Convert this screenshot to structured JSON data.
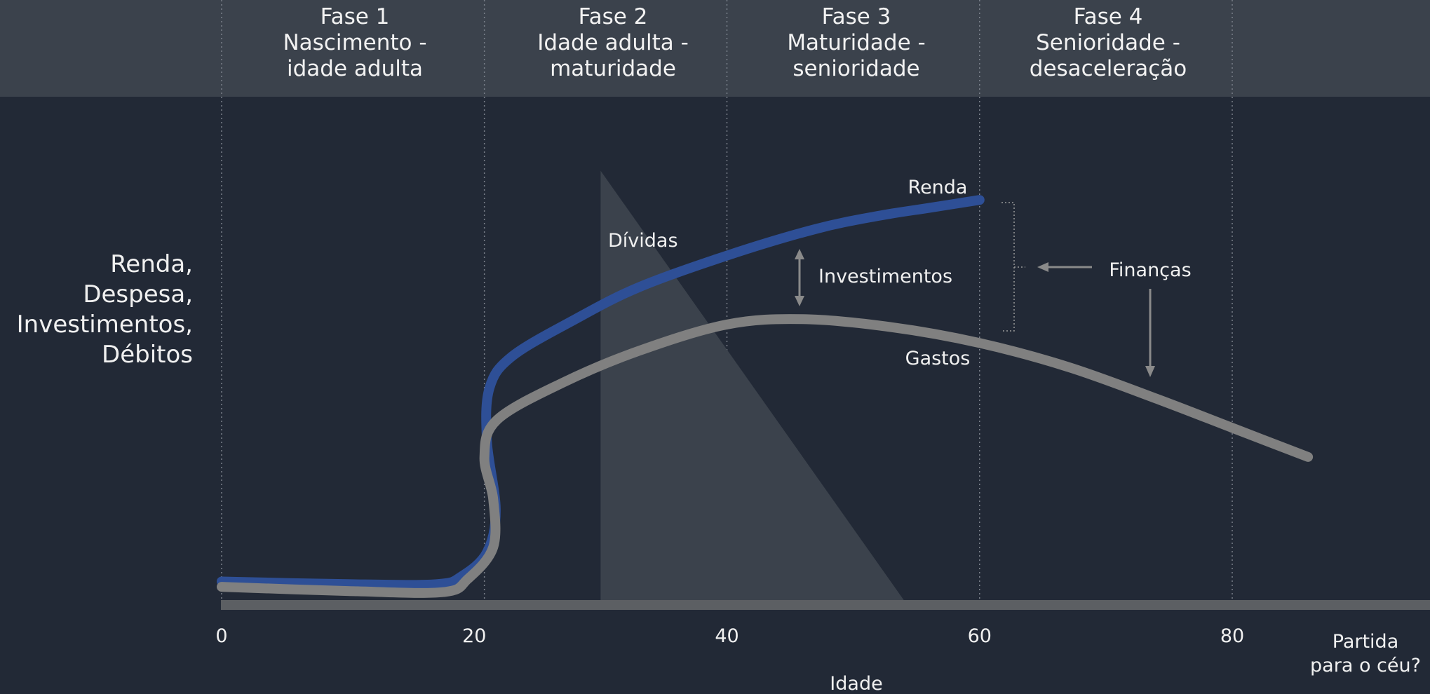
{
  "phases": [
    {
      "title": "Fase 1",
      "line1": "Nascimento -",
      "line2": "idade adulta"
    },
    {
      "title": "Fase 2",
      "line1": "Idade adulta -",
      "line2": "maturidade"
    },
    {
      "title": "Fase 3",
      "line1": "Maturidade -",
      "line2": "senioridade"
    },
    {
      "title": "Fase 4",
      "line1": "Senioridade -",
      "line2": "desaceleração"
    }
  ],
  "chart_data": {
    "type": "line",
    "xlabel": "Idade",
    "ylabel_lines": [
      "Renda,",
      "Despesa,",
      "Investimentos,",
      "Débitos"
    ],
    "x_ticks": [
      "0",
      "20",
      "40",
      "60",
      "80"
    ],
    "x_end_label_lines": [
      "Partida",
      "para o céu?"
    ],
    "phase_boundaries": [
      0,
      21,
      40,
      60,
      80
    ],
    "colors": {
      "renda": "#2e4f96",
      "gastos": "#808080",
      "dividas": "#3b424c",
      "axis": "#5c5f63"
    },
    "series": [
      {
        "name": "Renda",
        "points": [
          [
            0,
            3.5
          ],
          [
            10,
            3.0
          ],
          [
            17,
            3.0
          ],
          [
            19,
            4.5
          ],
          [
            21,
            9
          ],
          [
            21.7,
            17
          ],
          [
            21,
            30
          ],
          [
            21.2,
            40
          ],
          [
            23,
            46
          ],
          [
            28,
            53
          ],
          [
            33,
            59
          ],
          [
            40,
            65
          ],
          [
            47,
            70
          ],
          [
            52,
            72.5
          ],
          [
            56,
            74
          ],
          [
            60,
            75.5
          ]
        ]
      },
      {
        "name": "Gastos",
        "points": [
          [
            0,
            2.5
          ],
          [
            10,
            1.7
          ],
          [
            17.5,
            1.5
          ],
          [
            19.5,
            4
          ],
          [
            21.5,
            10
          ],
          [
            21.5,
            19
          ],
          [
            20.8,
            27
          ],
          [
            21.8,
            34
          ],
          [
            27,
            41
          ],
          [
            33,
            47
          ],
          [
            40,
            52
          ],
          [
            46,
            53
          ],
          [
            53,
            51.5
          ],
          [
            60,
            48.5
          ],
          [
            67,
            44
          ],
          [
            74,
            38
          ],
          [
            80,
            32.5
          ],
          [
            86,
            27
          ]
        ]
      },
      {
        "name": "Dívidas",
        "shape": "triangle",
        "points": [
          [
            30,
            81
          ],
          [
            30,
            0
          ],
          [
            54,
            0
          ]
        ]
      }
    ],
    "annotations": [
      {
        "text": "Renda"
      },
      {
        "text": "Gastos"
      },
      {
        "text": "Dívidas"
      },
      {
        "text": "Investimentos"
      },
      {
        "text": "Finanças"
      }
    ]
  }
}
